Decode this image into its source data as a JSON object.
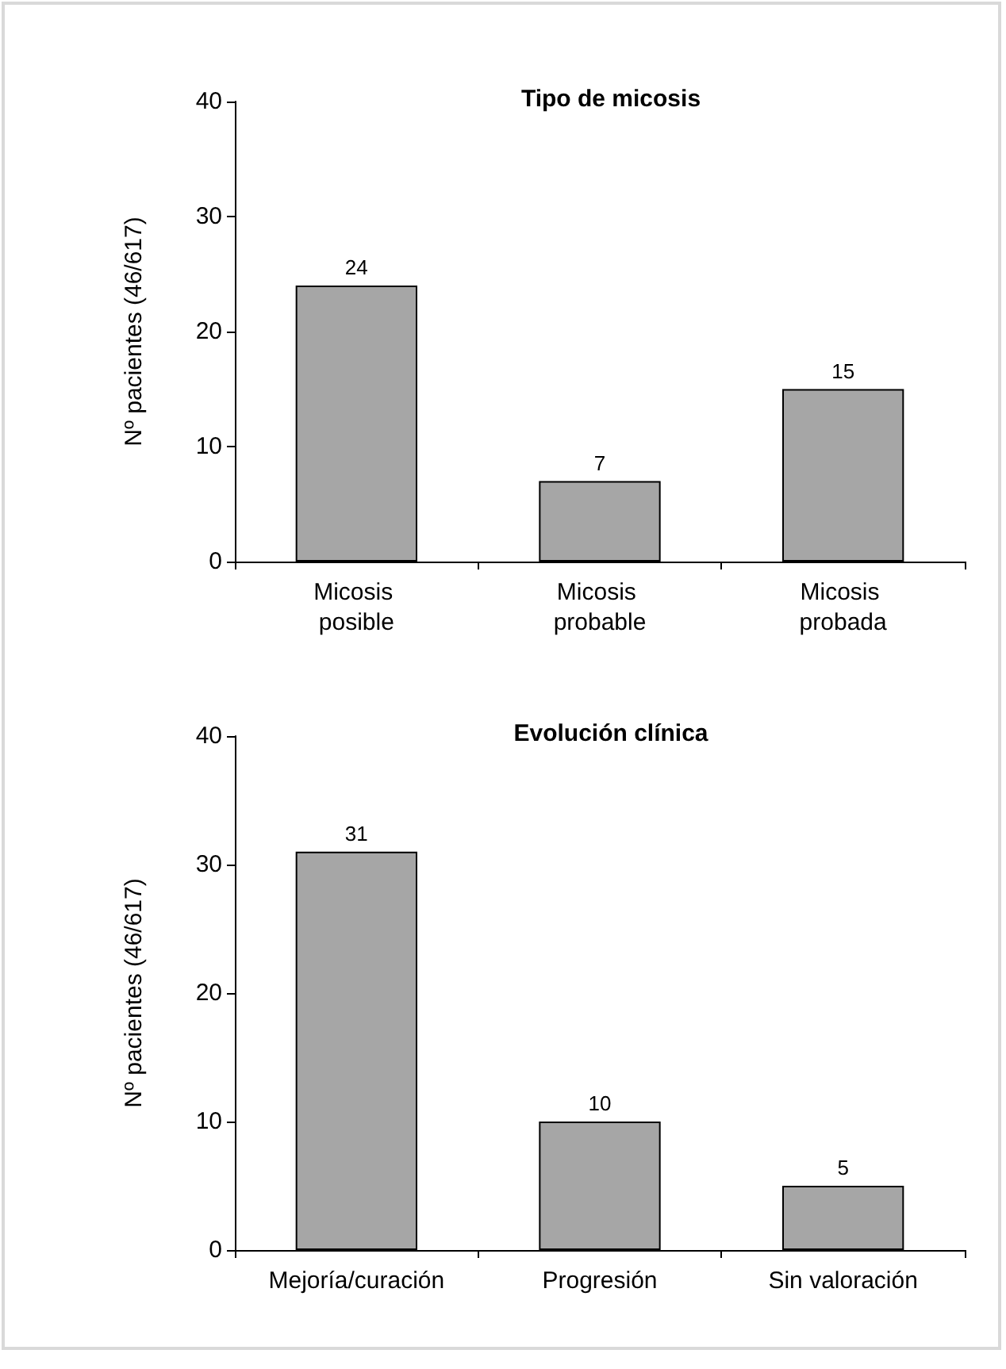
{
  "chart_data": [
    {
      "type": "bar",
      "title": "Tipo de micosis",
      "ylabel": "Nº pacientes (46/617)",
      "categories": [
        "Micosis posible",
        "Micosis probable",
        "Micosis probada"
      ],
      "values": [
        24,
        7,
        15
      ],
      "color": "#a6a6a6",
      "ylim": [
        0,
        40
      ],
      "yticks": [
        0,
        10,
        20,
        30,
        40
      ],
      "grid": false,
      "data_labels": true
    },
    {
      "type": "bar",
      "title": "Evolución clínica",
      "ylabel": "Nº pacientes (46/617)",
      "categories": [
        "Mejoría/curación",
        "Progresión",
        "Sin valoración"
      ],
      "values": [
        31,
        10,
        5
      ],
      "color": "#a6a6a6",
      "ylim": [
        0,
        40
      ],
      "yticks": [
        0,
        10,
        20,
        30,
        40
      ],
      "grid": false,
      "data_labels": true
    }
  ]
}
